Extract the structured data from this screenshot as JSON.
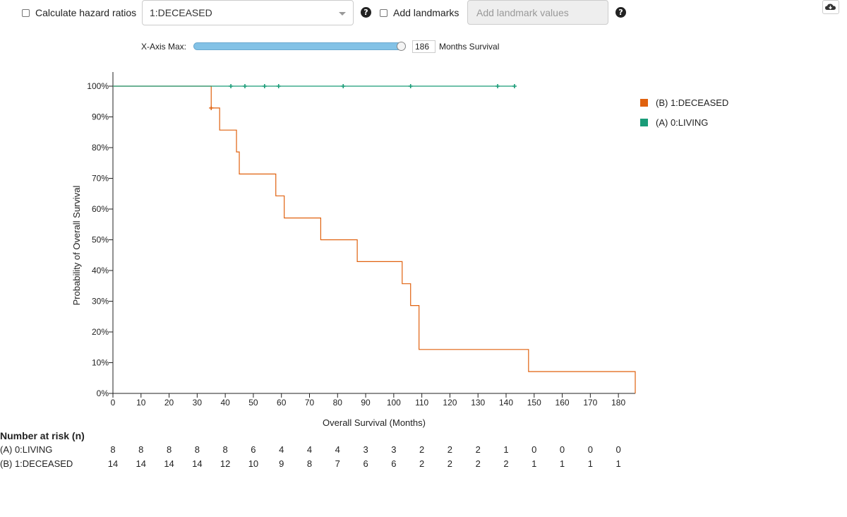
{
  "controls": {
    "hazard_label": "Calculate hazard ratios",
    "hazard_group": "1:DECEASED",
    "help_glyph": "?",
    "landmarks_label": "Add landmarks",
    "landmarks_placeholder": "Add landmark values",
    "download_icon": "cloud-download-icon"
  },
  "slider": {
    "label": "X-Axis Max:",
    "value": "186",
    "fraction": 1.0,
    "units": "Months Survival"
  },
  "colors": {
    "deceased": "#e0610e",
    "living": "#1a9c78",
    "axis": "#222222"
  },
  "chart_data": {
    "type": "line",
    "xlabel": "Overall Survival (Months)",
    "ylabel": "Probability of Overall Survival",
    "xlim": [
      0,
      186
    ],
    "ylim": [
      0,
      100
    ],
    "x_ticks": [
      0,
      10,
      20,
      30,
      40,
      50,
      60,
      70,
      80,
      90,
      100,
      110,
      120,
      130,
      140,
      150,
      160,
      170,
      180
    ],
    "y_ticks": [
      "0%",
      "10%",
      "20%",
      "30%",
      "40%",
      "50%",
      "60%",
      "70%",
      "80%",
      "90%",
      "100%"
    ],
    "legend_position": "top-right",
    "series": [
      {
        "name": "(B) 1:DECEASED",
        "color": "#e0610e",
        "steps": [
          [
            0,
            100
          ],
          [
            35,
            92.9
          ],
          [
            38,
            85.7
          ],
          [
            44,
            78.6
          ],
          [
            45,
            71.4
          ],
          [
            58,
            64.3
          ],
          [
            61,
            57.1
          ],
          [
            74,
            50.0
          ],
          [
            87,
            42.9
          ],
          [
            103,
            35.7
          ],
          [
            106,
            28.6
          ],
          [
            109,
            14.3
          ],
          [
            148,
            7.1
          ],
          [
            186,
            0
          ]
        ],
        "censored": [
          [
            35,
            92.9
          ]
        ]
      },
      {
        "name": "(A) 0:LIVING",
        "color": "#1a9c78",
        "steps": [
          [
            0,
            100
          ],
          [
            143,
            100
          ]
        ],
        "censored": [
          [
            42,
            100
          ],
          [
            47,
            100
          ],
          [
            54,
            100
          ],
          [
            59,
            100
          ],
          [
            82,
            100
          ],
          [
            106,
            100
          ],
          [
            137,
            100
          ],
          [
            143,
            100
          ]
        ]
      }
    ]
  },
  "risk_table": {
    "title": "Number at risk (n)",
    "rows": [
      {
        "label": "(A) 0:LIVING",
        "values": [
          "8",
          "8",
          "8",
          "8",
          "8",
          "6",
          "4",
          "4",
          "4",
          "3",
          "3",
          "2",
          "2",
          "2",
          "1",
          "0",
          "0",
          "0",
          "0"
        ]
      },
      {
        "label": "(B) 1:DECEASED",
        "values": [
          "14",
          "14",
          "14",
          "14",
          "12",
          "10",
          "9",
          "8",
          "7",
          "6",
          "6",
          "2",
          "2",
          "2",
          "2",
          "1",
          "1",
          "1",
          "1"
        ]
      }
    ]
  }
}
